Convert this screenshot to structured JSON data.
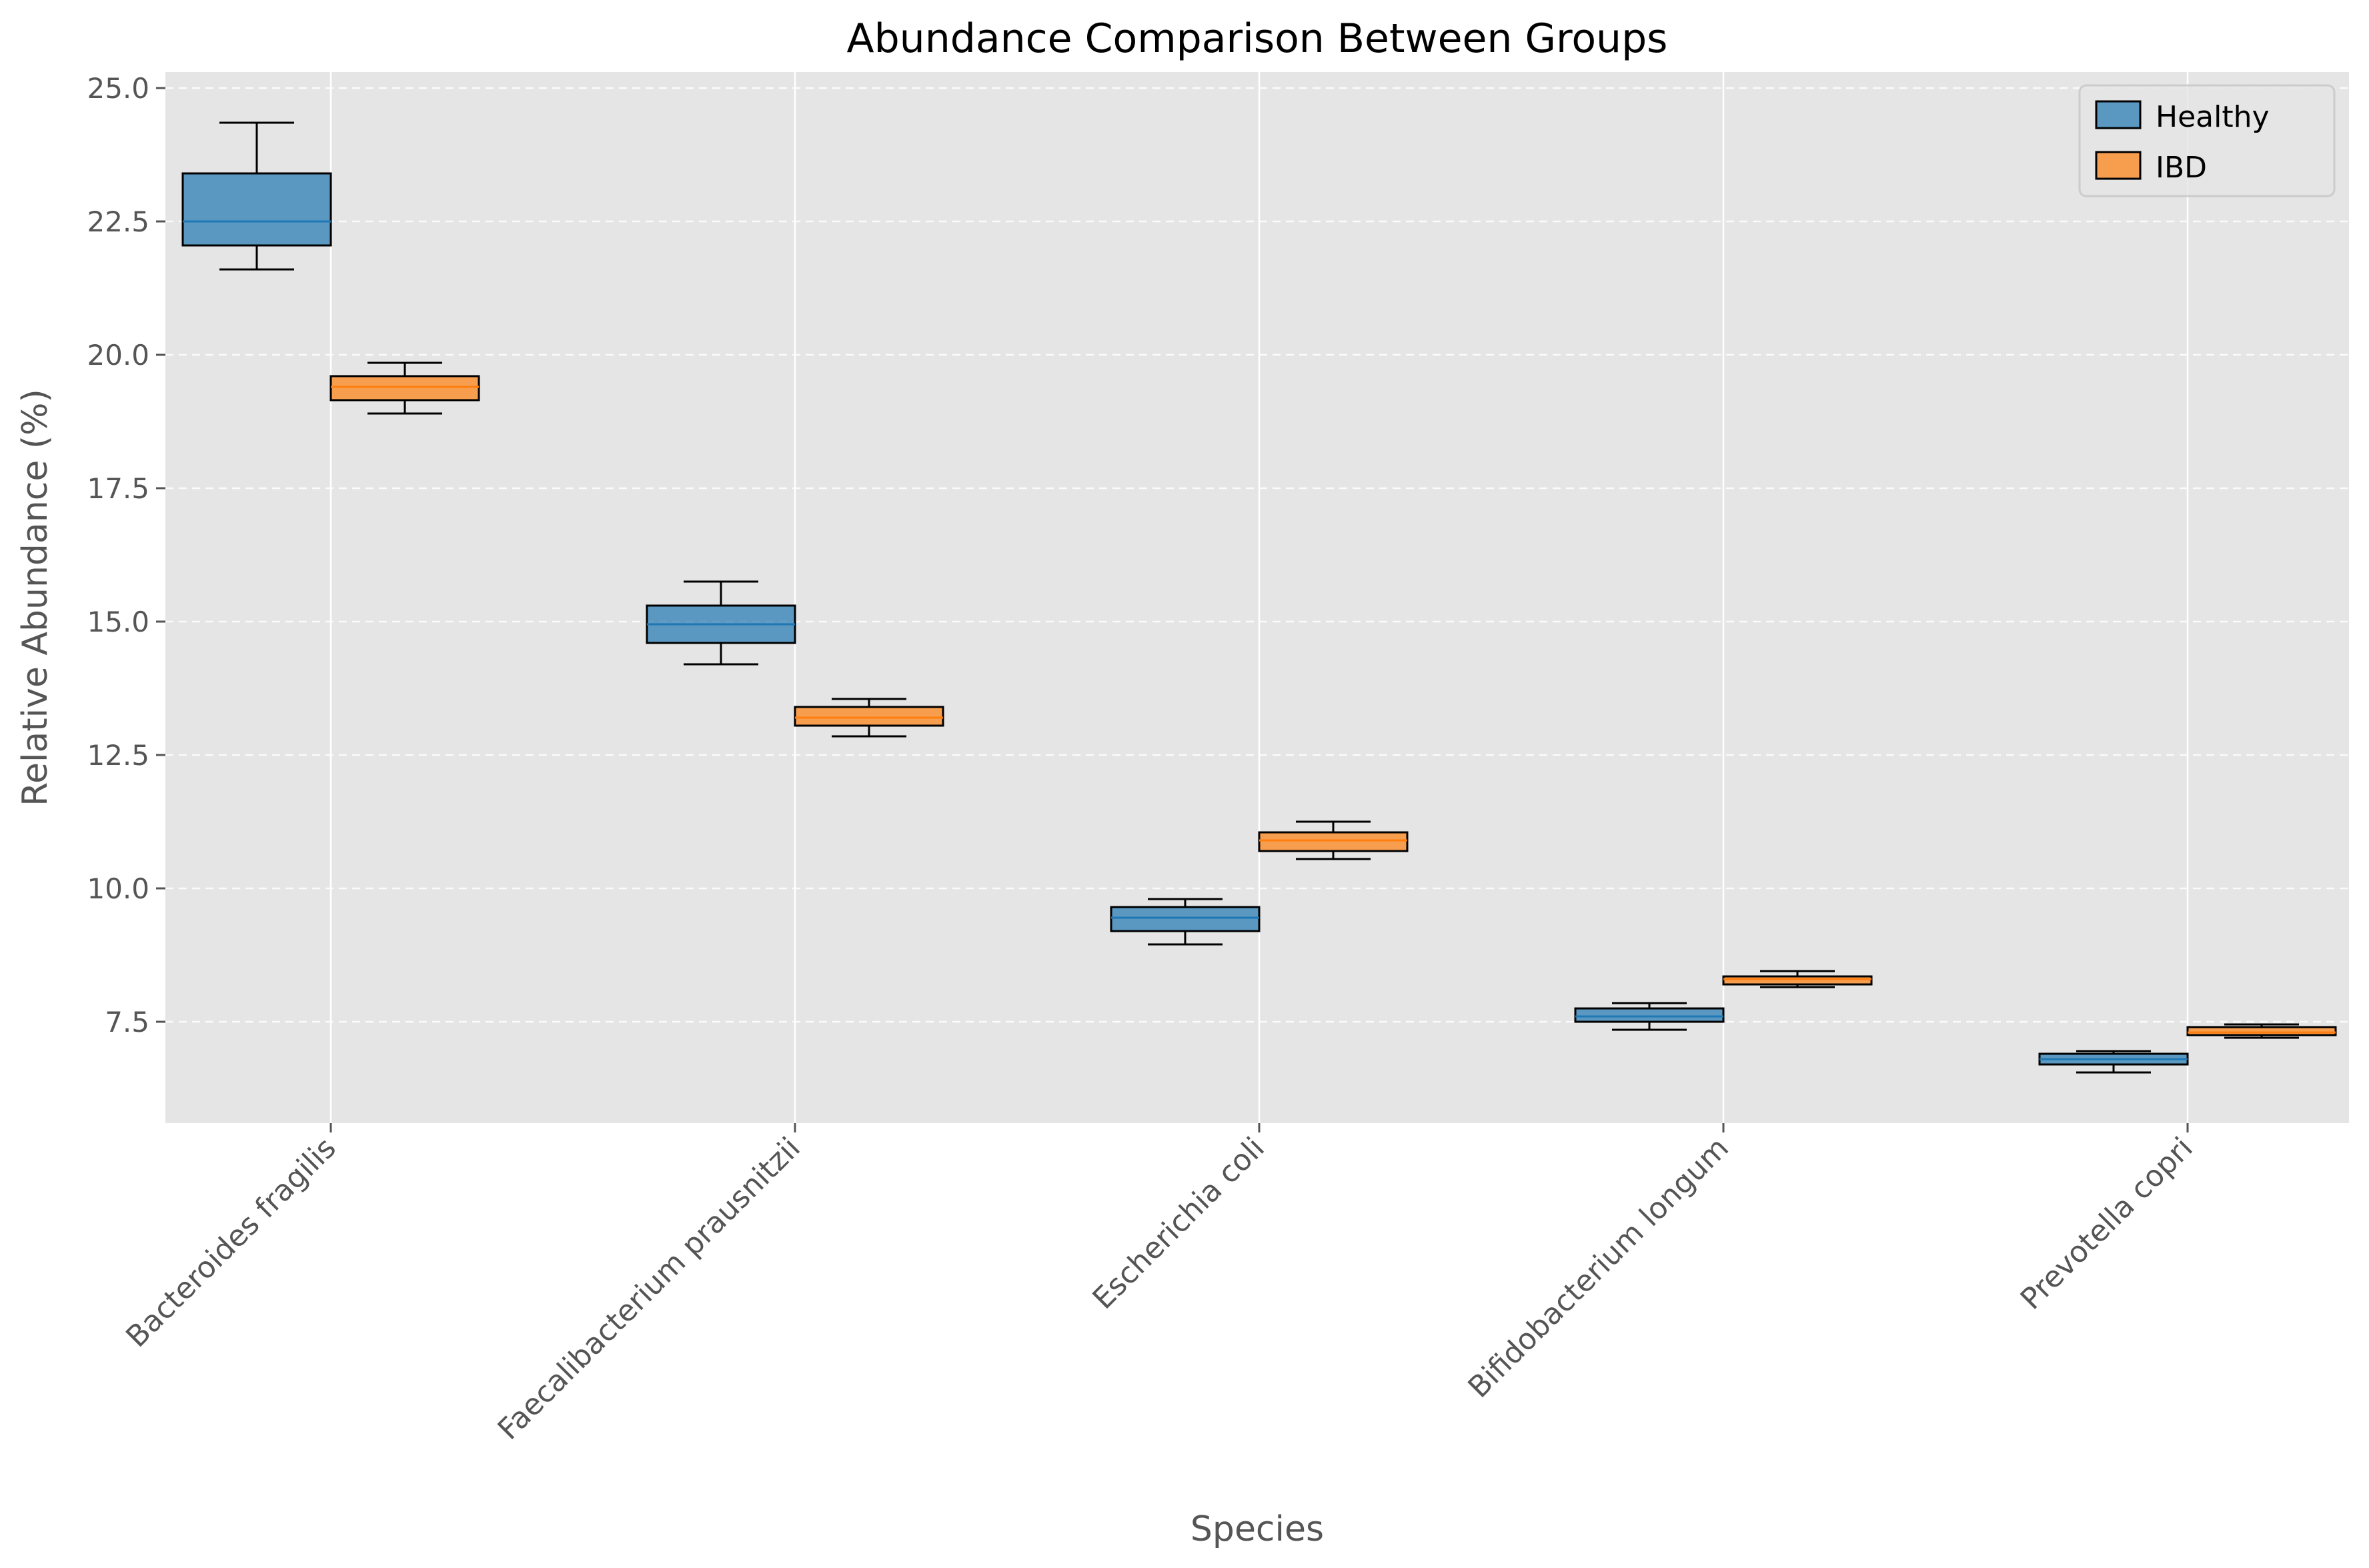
{
  "chart_data": {
    "type": "box",
    "title": "Abundance Comparison Between Groups",
    "xlabel": "Species",
    "ylabel": "Relative Abundance (%)",
    "ylim": [
      5.6,
      25.3
    ],
    "yticks": [
      7.5,
      10.0,
      12.5,
      15.0,
      17.5,
      20.0,
      22.5,
      25.0
    ],
    "ytick_labels": [
      "7.5",
      "10.0",
      "12.5",
      "15.0",
      "17.5",
      "20.0",
      "22.5",
      "25.0"
    ],
    "categories": [
      "Bacteroides fragilis",
      "Faecalibacterium prausnitzii",
      "Escherichia coli",
      "Bifidobacterium longum",
      "Prevotella copri"
    ],
    "grid": true,
    "legend_position": "top-right",
    "series": [
      {
        "name": "Healthy",
        "color": "#1f77b4",
        "boxes": [
          {
            "whisker_low": 21.6,
            "q1": 22.05,
            "median": 22.5,
            "q3": 23.4,
            "whisker_high": 24.35
          },
          {
            "whisker_low": 14.2,
            "q1": 14.6,
            "median": 14.95,
            "q3": 15.3,
            "whisker_high": 15.75
          },
          {
            "whisker_low": 8.95,
            "q1": 9.2,
            "median": 9.45,
            "q3": 9.65,
            "whisker_high": 9.8
          },
          {
            "whisker_low": 7.35,
            "q1": 7.5,
            "median": 7.6,
            "q3": 7.75,
            "whisker_high": 7.85
          },
          {
            "whisker_low": 6.55,
            "q1": 6.7,
            "median": 6.8,
            "q3": 6.9,
            "whisker_high": 6.95
          }
        ]
      },
      {
        "name": "IBD",
        "color": "#ff7f0e",
        "boxes": [
          {
            "whisker_low": 18.9,
            "q1": 19.15,
            "median": 19.4,
            "q3": 19.6,
            "whisker_high": 19.85
          },
          {
            "whisker_low": 12.85,
            "q1": 13.05,
            "median": 13.2,
            "q3": 13.4,
            "whisker_high": 13.55
          },
          {
            "whisker_low": 10.55,
            "q1": 10.7,
            "median": 10.9,
            "q3": 11.05,
            "whisker_high": 11.25
          },
          {
            "whisker_low": 8.15,
            "q1": 8.2,
            "median": 8.3,
            "q3": 8.35,
            "whisker_high": 8.45
          },
          {
            "whisker_low": 7.2,
            "q1": 7.25,
            "median": 7.3,
            "q3": 7.4,
            "whisker_high": 7.45
          }
        ]
      }
    ]
  }
}
